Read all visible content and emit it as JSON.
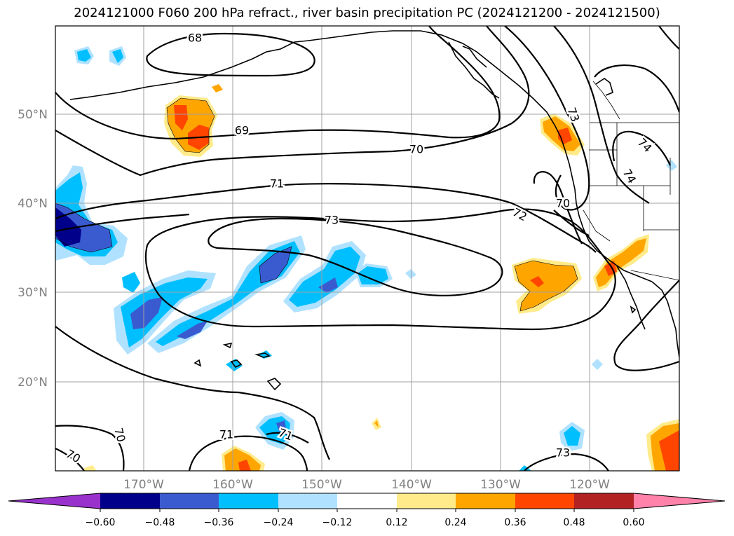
{
  "title": "2024121000 F060 200 hPa refract., river basin precipitation PC (2024121200 - 2024121500)",
  "map": {
    "lat_labels": [
      "50°N",
      "40°N",
      "30°N",
      "20°N"
    ],
    "lon_labels": [
      "170°W",
      "160°W",
      "150°W",
      "140°W",
      "130°W",
      "120°W"
    ]
  },
  "contour_labels": [
    "68",
    "69",
    "70",
    "71",
    "73",
    "72",
    "73",
    "74",
    "74",
    "70",
    "70",
    "70",
    "71",
    "71",
    "73"
  ],
  "colorbar": {
    "ticks": [
      "−0.60",
      "−0.48",
      "−0.36",
      "−0.24",
      "−0.12",
      "0.12",
      "0.24",
      "0.36",
      "0.48",
      "0.60"
    ],
    "colors": [
      "#9932cc",
      "#00008b",
      "#3a5bd0",
      "#00bfff",
      "#b0e2ff",
      "#ffffff",
      "#ffeb8a",
      "#ffa500",
      "#ff4500",
      "#b22222",
      "#ff82ab"
    ]
  }
}
